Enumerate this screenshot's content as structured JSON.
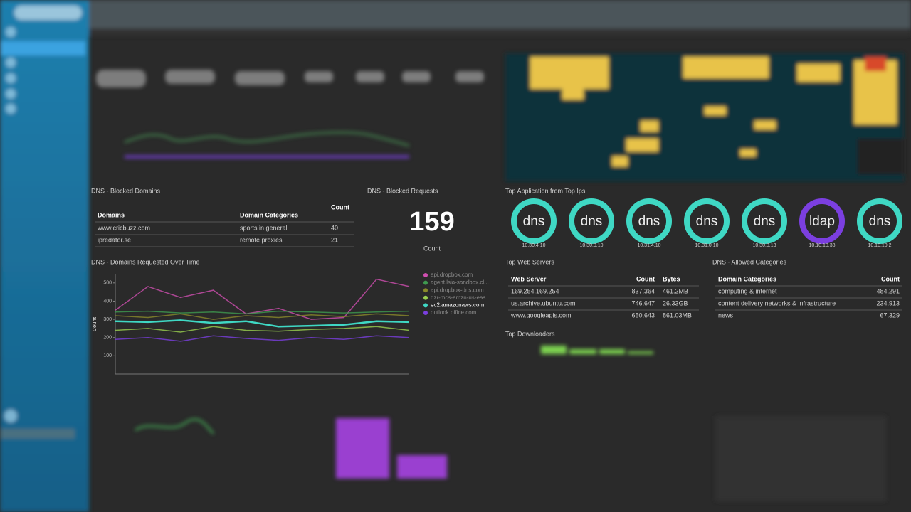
{
  "blocked_domains": {
    "title": "DNS - Blocked Domains",
    "columns": [
      "Domains",
      "Domain Categories",
      "Count"
    ],
    "rows": [
      [
        "www.cricbuzz.com",
        "sports in general",
        "40"
      ],
      [
        "ipredator.se",
        "remote proxies",
        "21"
      ]
    ]
  },
  "blocked_requests": {
    "title": "DNS - Blocked Requests",
    "value": "159",
    "label": "Count"
  },
  "top_apps": {
    "title": "Top Application from Top Ips",
    "items": [
      {
        "app": "dns",
        "ip": "10.30.4.10",
        "color": "#3fd8c4"
      },
      {
        "app": "dns",
        "ip": "10.30.0.10",
        "color": "#3fd8c4"
      },
      {
        "app": "dns",
        "ip": "10.31.4.10",
        "color": "#3fd8c4"
      },
      {
        "app": "dns",
        "ip": "10.31.0.10",
        "color": "#3fd8c4"
      },
      {
        "app": "dns",
        "ip": "10.30.0.13",
        "color": "#3fd8c4"
      },
      {
        "app": "ldap",
        "ip": "10.10.10.38",
        "color": "#7b3fe0"
      },
      {
        "app": "dns",
        "ip": "10.10.10.2",
        "color": "#3fd8c4"
      }
    ]
  },
  "chart_data": {
    "type": "line",
    "title": "DNS - Domains Requested Over Time",
    "ylabel": "Count",
    "ylim": [
      0,
      550
    ],
    "yticks": [
      100,
      200,
      300,
      400,
      500
    ],
    "highlight": "ec2.amazonaws.com",
    "series": [
      {
        "name": "api.dropbox.com",
        "color": "#d04fb0",
        "values": [
          350,
          480,
          420,
          460,
          330,
          360,
          300,
          310,
          520,
          480
        ]
      },
      {
        "name": "agent.lsia-sandbox.cl...",
        "color": "#3f9a4f",
        "values": [
          340,
          345,
          335,
          340,
          330,
          345,
          340,
          335,
          340,
          345
        ]
      },
      {
        "name": "api.dropbox-dns.com",
        "color": "#8a8a2a",
        "values": [
          320,
          310,
          330,
          300,
          320,
          310,
          325,
          315,
          330,
          320
        ]
      },
      {
        "name": "dzr-mcs-amzn-us-eas...",
        "color": "#9ad04f",
        "values": [
          240,
          250,
          230,
          260,
          240,
          235,
          245,
          250,
          260,
          240
        ]
      },
      {
        "name": "ec2.amazonaws.com",
        "color": "#3fd8c4",
        "values": [
          290,
          285,
          295,
          280,
          290,
          260,
          265,
          270,
          290,
          285
        ]
      },
      {
        "name": "outlook.office.com",
        "color": "#7b3fe0",
        "values": [
          190,
          200,
          180,
          210,
          195,
          185,
          200,
          190,
          210,
          200
        ]
      }
    ]
  },
  "web_servers": {
    "title": "Top Web Servers",
    "columns": [
      "Web Server",
      "Count",
      "Bytes"
    ],
    "rows": [
      [
        "169.254.169.254",
        "837,364",
        "461.2MB"
      ],
      [
        "us.archive.ubuntu.com",
        "746,647",
        "26.33GB"
      ],
      [
        "www.googleapis.com",
        "650,643",
        "861.03MB"
      ]
    ]
  },
  "allowed_categories": {
    "title": "DNS - Allowed Categories",
    "columns": [
      "Domain Categories",
      "Count"
    ],
    "rows": [
      [
        "computing & internet",
        "484,291"
      ],
      [
        "content delivery networks & infrastructure",
        "234,913"
      ],
      [
        "news",
        "67,329"
      ]
    ]
  },
  "top_downloaders": {
    "title": "Top Downloaders"
  }
}
